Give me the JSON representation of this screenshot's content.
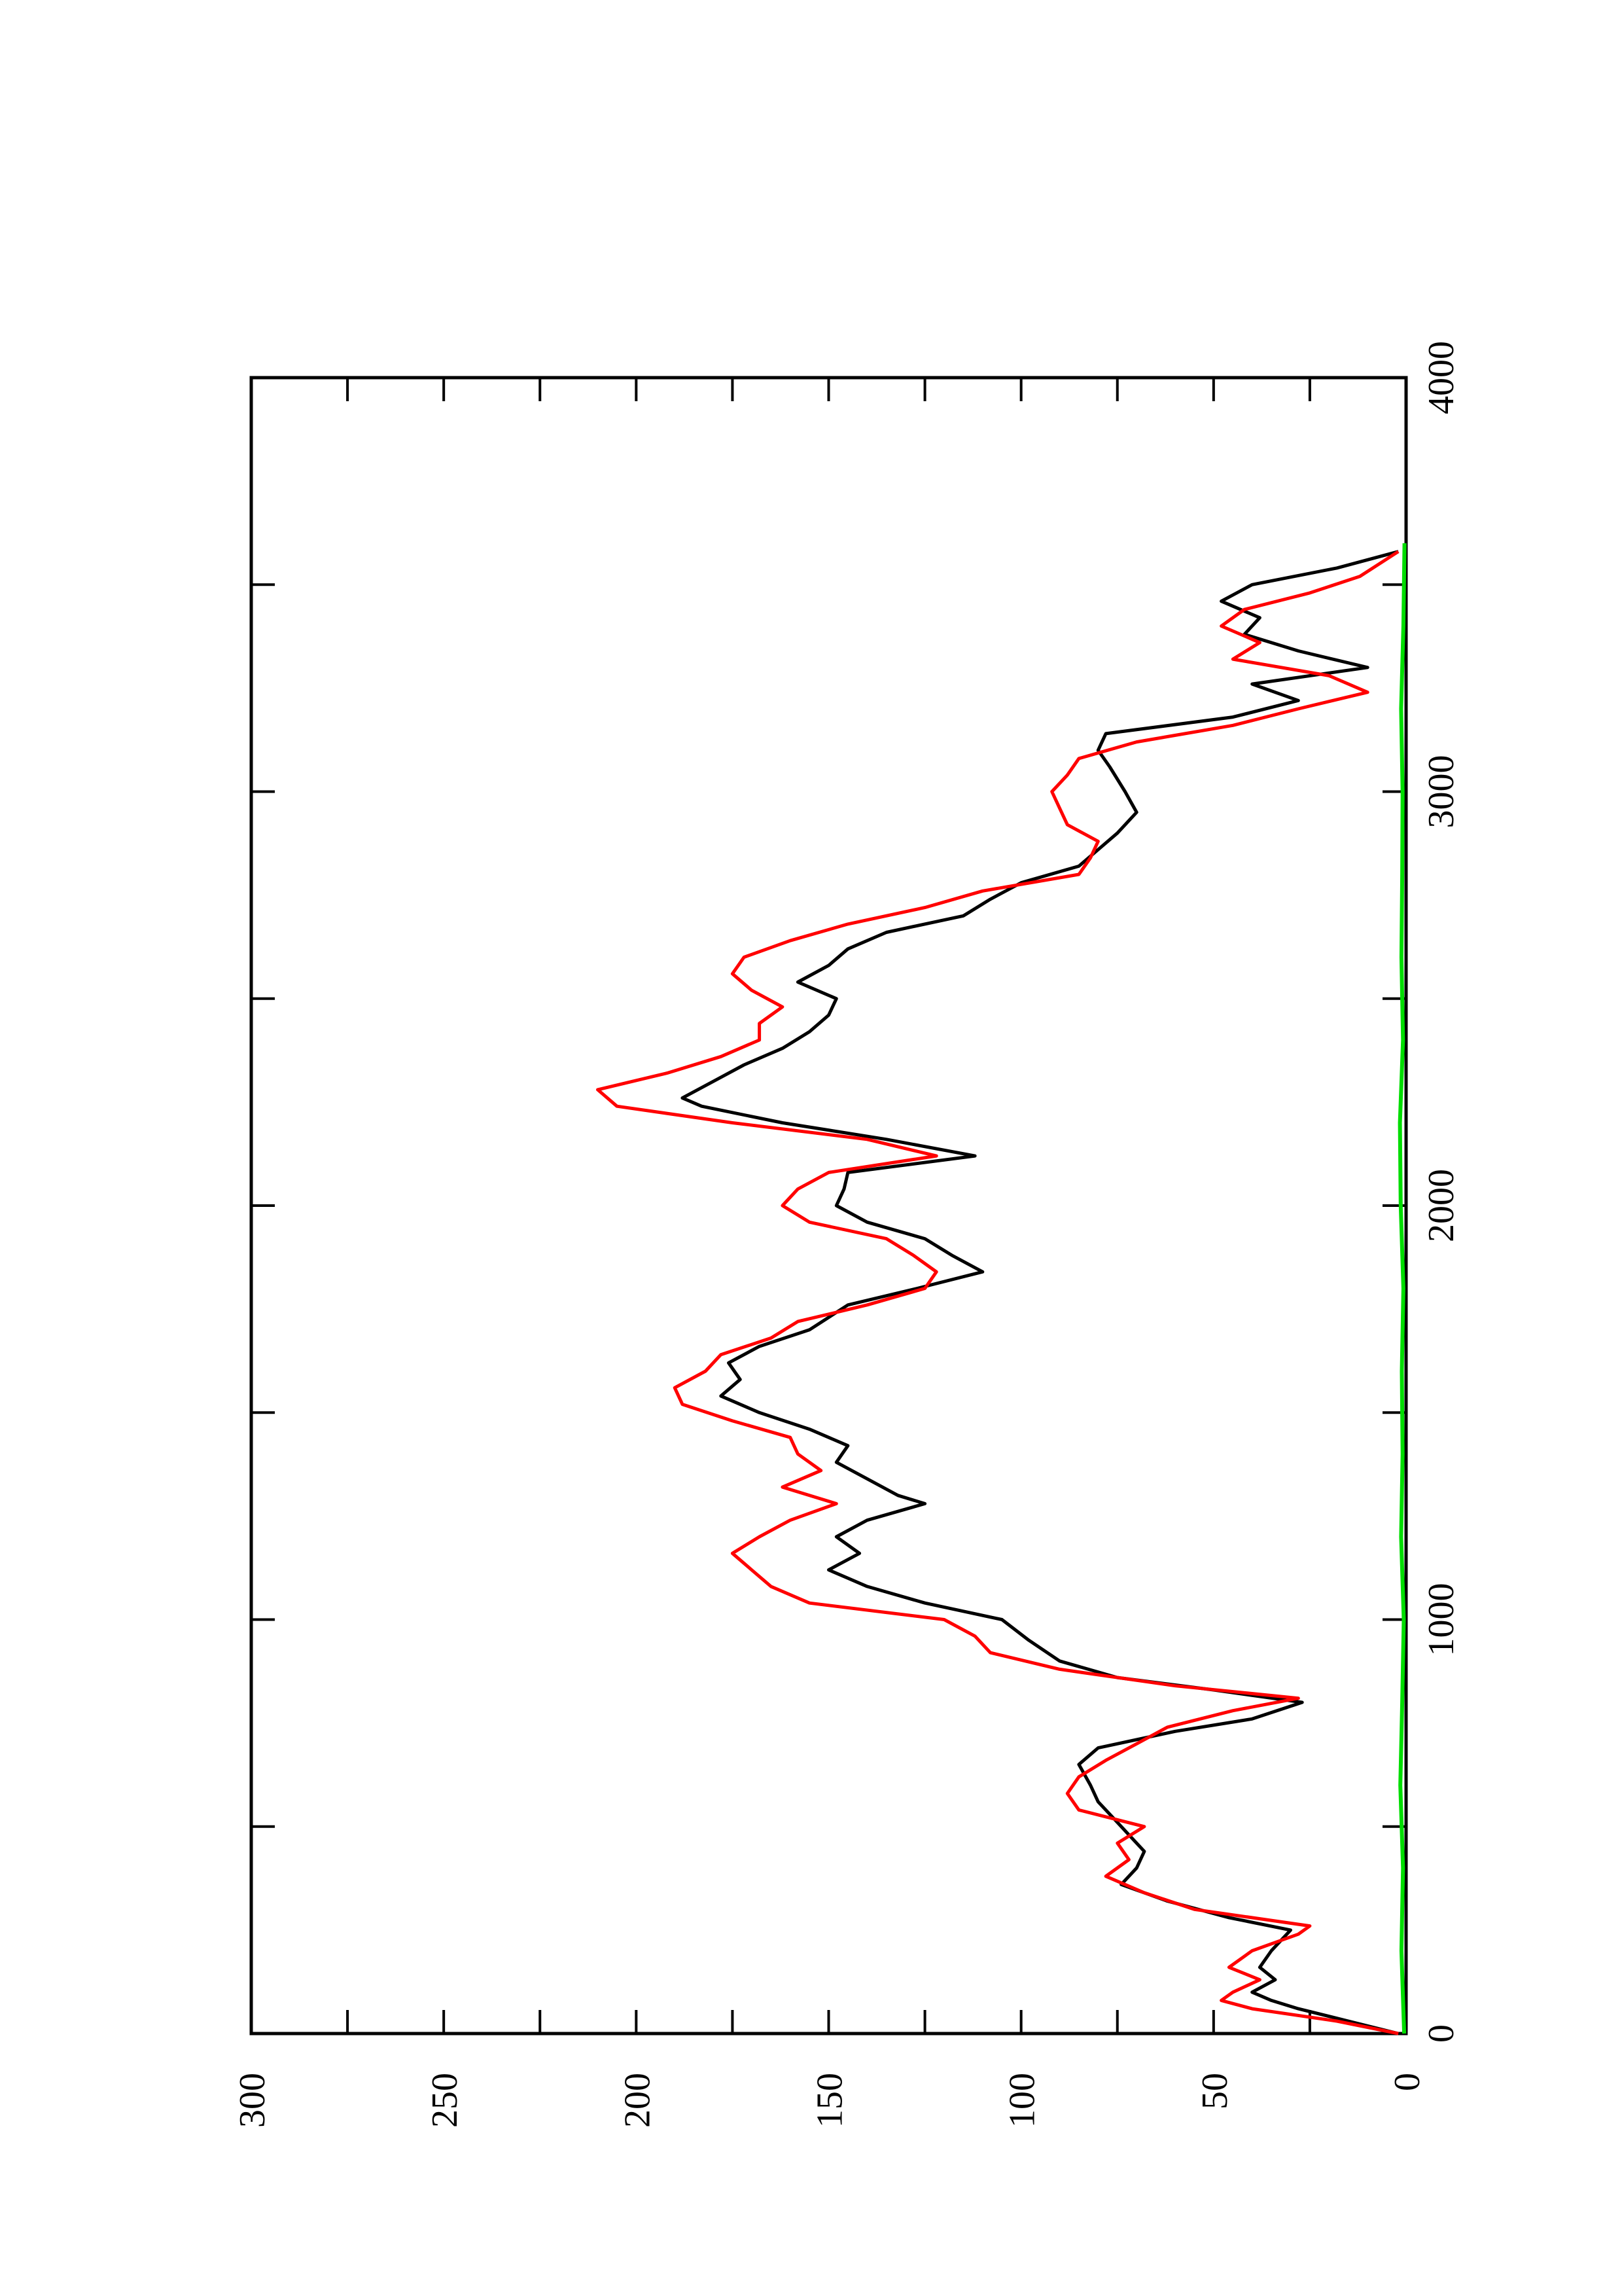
{
  "chart_data": {
    "type": "line",
    "title": "",
    "xlabel": "",
    "ylabel": "",
    "xlim": [
      0,
      4000
    ],
    "ylim": [
      0,
      300
    ],
    "x_ticks": [
      0,
      1000,
      2000,
      3000,
      4000
    ],
    "y_ticks": [
      0,
      50,
      100,
      150,
      200,
      250,
      300
    ],
    "x_tick_labels": [
      "0",
      "1000",
      "2000",
      "3000",
      "4000"
    ],
    "y_tick_labels": [
      "0",
      "50",
      "100",
      "150",
      "200",
      "250",
      "300"
    ],
    "grid": false,
    "legend": false,
    "orientation": "rotated 90 degrees counter-clockwise",
    "series": [
      {
        "color": "#000000",
        "x": [
          0,
          30,
          60,
          80,
          100,
          130,
          160,
          200,
          250,
          280,
          320,
          360,
          400,
          440,
          480,
          520,
          560,
          600,
          650,
          690,
          730,
          760,
          800,
          830,
          860,
          900,
          950,
          1000,
          1040,
          1080,
          1120,
          1160,
          1200,
          1240,
          1280,
          1300,
          1340,
          1380,
          1420,
          1460,
          1500,
          1540,
          1580,
          1620,
          1660,
          1700,
          1760,
          1800,
          1840,
          1880,
          1920,
          1960,
          2000,
          2040,
          2080,
          2120,
          2160,
          2200,
          2240,
          2260,
          2300,
          2340,
          2380,
          2420,
          2460,
          2500,
          2540,
          2580,
          2620,
          2660,
          2700,
          2740,
          2780,
          2820,
          2860,
          2900,
          2950,
          3000,
          3060,
          3100,
          3140,
          3180,
          3220,
          3260,
          3300,
          3340,
          3380,
          3420,
          3460,
          3500,
          3540,
          3580
        ],
        "y": [
          2,
          15,
          28,
          35,
          40,
          34,
          38,
          35,
          30,
          46,
          62,
          74,
          70,
          68,
          72,
          76,
          80,
          82,
          85,
          80,
          60,
          40,
          27,
          50,
          75,
          90,
          98,
          105,
          125,
          140,
          150,
          142,
          148,
          140,
          125,
          132,
          140,
          148,
          145,
          155,
          168,
          178,
          173,
          176,
          168,
          155,
          145,
          127,
          110,
          118,
          125,
          140,
          148,
          146,
          145,
          112,
          135,
          162,
          183,
          188,
          180,
          172,
          162,
          155,
          150,
          148,
          158,
          150,
          145,
          135,
          115,
          108,
          100,
          85,
          80,
          75,
          70,
          73,
          77,
          80,
          78,
          45,
          28,
          40,
          10,
          28,
          42,
          38,
          48,
          40,
          18,
          2
        ]
      },
      {
        "color": "#ff0000",
        "x": [
          0,
          30,
          60,
          80,
          100,
          130,
          160,
          200,
          240,
          260,
          300,
          340,
          380,
          420,
          460,
          500,
          540,
          580,
          620,
          660,
          700,
          740,
          780,
          810,
          840,
          880,
          920,
          960,
          1000,
          1040,
          1080,
          1120,
          1160,
          1200,
          1240,
          1280,
          1320,
          1360,
          1400,
          1440,
          1480,
          1520,
          1560,
          1600,
          1640,
          1680,
          1720,
          1760,
          1800,
          1840,
          1880,
          1920,
          1960,
          2000,
          2040,
          2080,
          2120,
          2160,
          2200,
          2240,
          2280,
          2320,
          2360,
          2400,
          2440,
          2480,
          2520,
          2560,
          2600,
          2640,
          2680,
          2720,
          2760,
          2800,
          2840,
          2880,
          2920,
          2960,
          3000,
          3040,
          3080,
          3120,
          3160,
          3200,
          3240,
          3280,
          3320,
          3360,
          3400,
          3440,
          3480,
          3520,
          3580
        ],
        "y": [
          2,
          18,
          40,
          48,
          45,
          38,
          46,
          40,
          28,
          25,
          55,
          68,
          78,
          72,
          75,
          68,
          85,
          88,
          85,
          78,
          70,
          62,
          45,
          28,
          60,
          90,
          108,
          112,
          120,
          155,
          165,
          170,
          175,
          168,
          160,
          148,
          162,
          152,
          158,
          160,
          175,
          188,
          190,
          182,
          178,
          165,
          158,
          140,
          125,
          122,
          128,
          135,
          155,
          162,
          158,
          150,
          122,
          140,
          175,
          205,
          210,
          192,
          178,
          168,
          168,
          162,
          170,
          175,
          172,
          160,
          145,
          125,
          110,
          85,
          82,
          80,
          88,
          90,
          92,
          88,
          85,
          70,
          45,
          28,
          10,
          20,
          45,
          38,
          48,
          42,
          25,
          12,
          2
        ]
      },
      {
        "color": "#00dd00",
        "x": [
          0,
          200,
          400,
          600,
          800,
          1000,
          1200,
          1400,
          1600,
          1800,
          2000,
          2200,
          2400,
          2600,
          2800,
          3000,
          3200,
          3400,
          3600
        ],
        "y": [
          0.5,
          1.2,
          0.8,
          1.5,
          1.0,
          0.6,
          1.3,
          0.9,
          1.1,
          0.7,
          1.4,
          1.6,
          0.8,
          1.2,
          1.0,
          0.9,
          1.3,
          0.7,
          0.4
        ]
      }
    ]
  }
}
